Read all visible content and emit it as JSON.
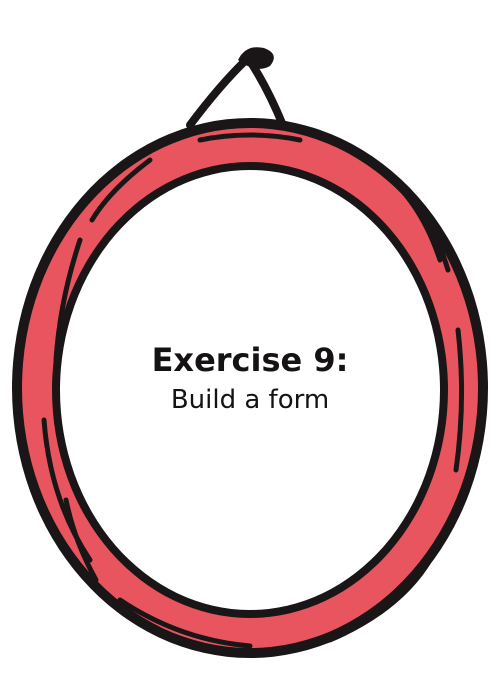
{
  "card": {
    "title": "Exercise 9:",
    "subtitle": "Build a form"
  },
  "ring": {
    "fill_color": "#E8555E",
    "outline_color": "#1A1617"
  }
}
